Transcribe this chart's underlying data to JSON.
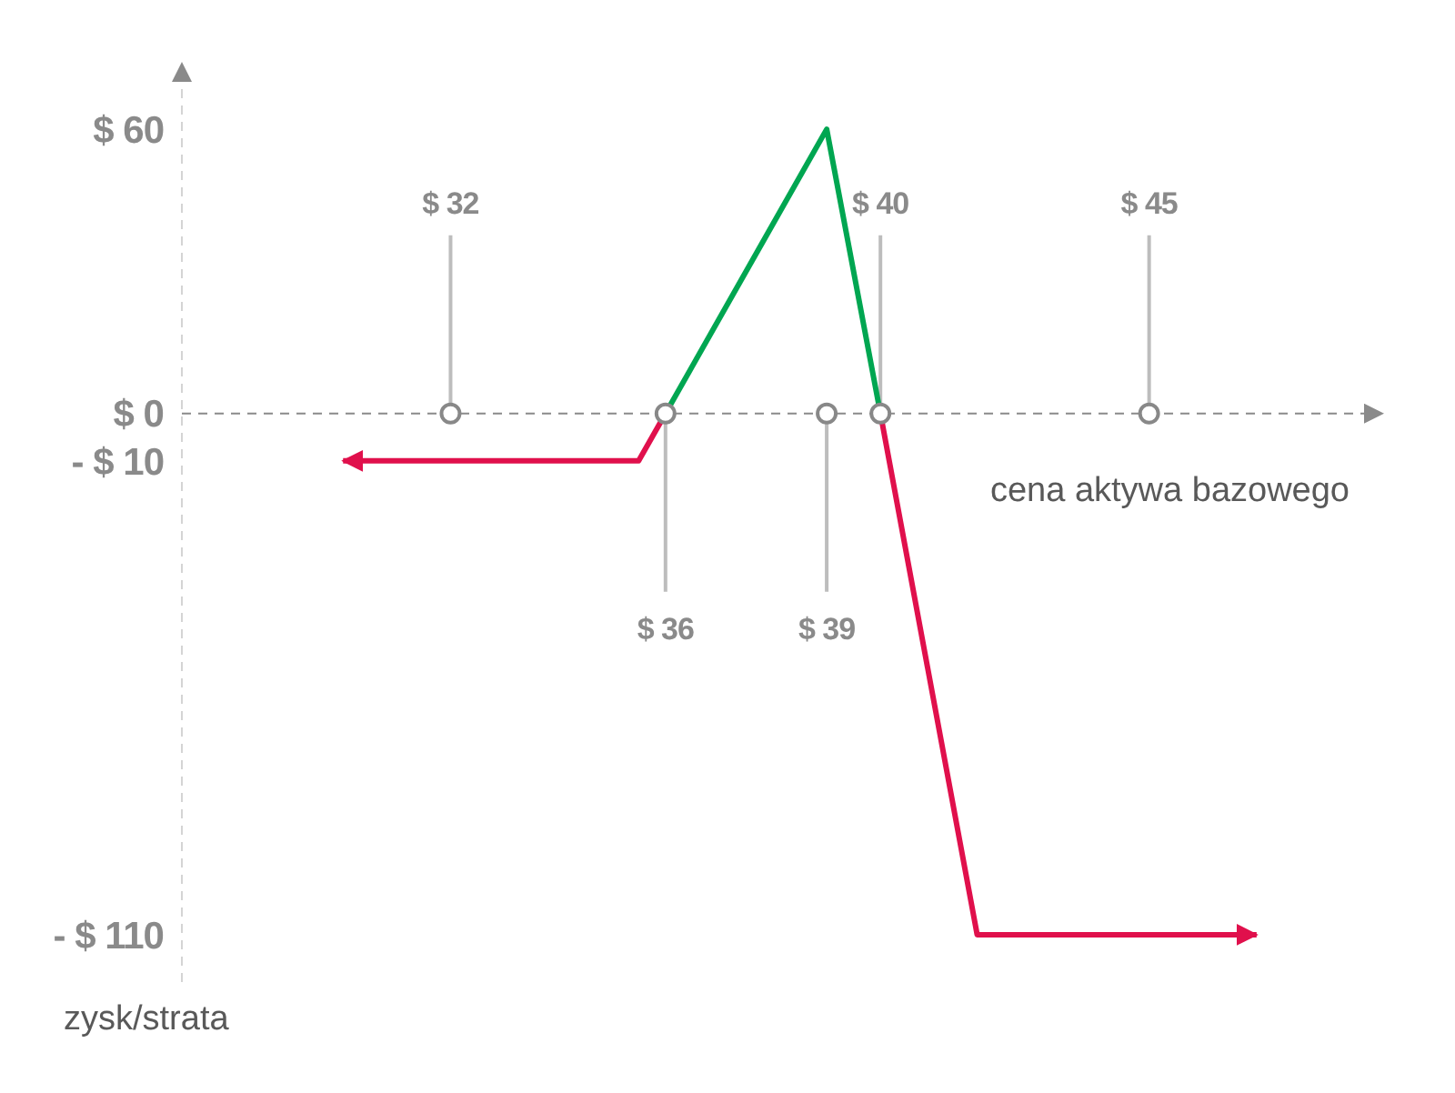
{
  "chart_data": {
    "type": "line",
    "xlabel": "cena aktywa bazowego",
    "ylabel": "zysk/strata",
    "xlim": [
      27,
      49
    ],
    "xticks": [
      {
        "value": 36,
        "label": "$ 36"
      },
      {
        "value": 39,
        "label": "$ 39"
      }
    ],
    "x2lim": [
      27,
      49
    ],
    "x2ticks": [
      {
        "value": 32,
        "label": "$ 32"
      },
      {
        "value": 40,
        "label": "$ 40"
      },
      {
        "value": 45,
        "label": "$ 45"
      }
    ],
    "ylim": [
      -120,
      70
    ],
    "yticks": [
      {
        "value": 60,
        "label": "$ 60"
      },
      {
        "value": 0,
        "label": "$ 0"
      },
      {
        "value": -10,
        "label": "- $ 10"
      },
      {
        "value": -110,
        "label": "- $ 110"
      }
    ],
    "series": [
      {
        "color": "#e0104c",
        "x": [
          30,
          35.5,
          36
        ],
        "values": [
          -10,
          -10,
          0
        ]
      },
      {
        "color": "#00a651",
        "x": [
          36,
          39,
          40
        ],
        "values": [
          0,
          60,
          0
        ]
      },
      {
        "color": "#e0104c",
        "x": [
          40,
          41.8,
          47
        ],
        "values": [
          0,
          -110,
          -110
        ]
      },
      {
        "type": "scatter",
        "color": "#888888",
        "marker": "circle",
        "x": [
          32,
          36,
          39,
          40,
          45
        ],
        "values": [
          0,
          0,
          0,
          0,
          0
        ]
      }
    ]
  }
}
